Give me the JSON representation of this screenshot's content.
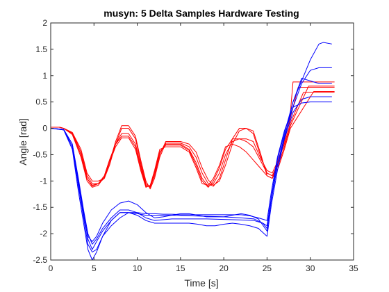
{
  "chart_data": {
    "type": "line",
    "title": "musyn: 5 Delta Samples Hardware Testing",
    "xlabel": "Time [s]",
    "ylabel": "Angle [rad]",
    "xlim": [
      0,
      35
    ],
    "ylim": [
      -2.5,
      2
    ],
    "xticks": [
      "0",
      "5",
      "10",
      "15",
      "20",
      "25",
      "30",
      "35"
    ],
    "yticks": [
      "-2.5",
      "-2",
      "-1.5",
      "-1",
      "-0.5",
      "0",
      "0.5",
      "1",
      "1.5",
      "2"
    ],
    "grid": false,
    "colors": {
      "red_group": "#ff0000",
      "blue_group": "#0000ff",
      "axes": "#262626"
    },
    "series": [
      {
        "color_group": "red",
        "x": [
          0,
          1,
          1.5,
          2.5,
          3.5,
          4.2,
          4.8,
          5.5,
          6.2,
          6.8,
          7.5,
          8.2,
          9,
          9.8,
          10.4,
          11,
          11.5,
          12,
          12.6,
          13.3,
          14,
          15,
          16,
          16.8,
          17.5,
          18.2,
          18.8,
          19.5,
          20.2,
          21,
          21.8,
          22.6,
          23.4,
          24.2,
          25,
          25.6,
          26.3,
          27,
          27.7,
          28,
          32.8
        ],
        "y": [
          0.02,
          0.02,
          0.0,
          -0.08,
          -0.4,
          -0.85,
          -1.0,
          -1.0,
          -0.95,
          -0.7,
          -0.3,
          0.0,
          0.0,
          -0.2,
          -0.65,
          -1.05,
          -1.12,
          -0.9,
          -0.5,
          -0.25,
          -0.25,
          -0.25,
          -0.3,
          -0.45,
          -0.75,
          -0.98,
          -1.08,
          -1.0,
          -0.7,
          -0.3,
          -0.05,
          0.0,
          -0.05,
          -0.45,
          -0.9,
          -0.95,
          -0.6,
          -0.2,
          0.3,
          0.88,
          0.88
        ]
      },
      {
        "color_group": "red",
        "x": [
          0,
          1,
          1.5,
          2.5,
          3.5,
          4.2,
          4.8,
          5.5,
          6.2,
          6.8,
          7.5,
          8.2,
          9,
          9.8,
          10.4,
          11,
          11.5,
          12,
          12.6,
          13.3,
          14,
          15,
          16,
          16.8,
          17.5,
          18.2,
          18.8,
          19.5,
          20.2,
          21,
          21.8,
          22.6,
          23.4,
          24.2,
          25,
          25.6,
          26.3,
          27,
          27.7,
          28.6,
          32.8
        ],
        "y": [
          0.02,
          0.02,
          0.0,
          -0.08,
          -0.45,
          -0.9,
          -1.05,
          -1.05,
          -0.95,
          -0.65,
          -0.25,
          0.05,
          0.05,
          -0.15,
          -0.6,
          -1.0,
          -1.15,
          -0.95,
          -0.55,
          -0.28,
          -0.28,
          -0.28,
          -0.35,
          -0.55,
          -0.85,
          -1.05,
          -1.1,
          -0.95,
          -0.6,
          -0.2,
          0.0,
          0.0,
          -0.1,
          -0.5,
          -0.85,
          -0.9,
          -0.65,
          -0.25,
          0.2,
          0.78,
          0.78
        ]
      },
      {
        "color_group": "red",
        "x": [
          0,
          1,
          1.5,
          2.5,
          3.5,
          4.2,
          4.8,
          5.5,
          6.2,
          6.8,
          7.5,
          8.2,
          9,
          9.8,
          10.4,
          11,
          11.5,
          12,
          12.6,
          13.3,
          14,
          15,
          16,
          16.8,
          17.5,
          18.2,
          18.8,
          19.5,
          20.2,
          21,
          21.8,
          22.6,
          23.4,
          24.2,
          25,
          25.6,
          26.3,
          27,
          27.7,
          29.2,
          32.8
        ],
        "y": [
          0.02,
          0.02,
          0.0,
          -0.1,
          -0.5,
          -0.95,
          -1.08,
          -1.05,
          -0.9,
          -0.6,
          -0.3,
          -0.1,
          -0.1,
          -0.3,
          -0.7,
          -1.08,
          -1.12,
          -0.85,
          -0.45,
          -0.3,
          -0.3,
          -0.3,
          -0.4,
          -0.65,
          -0.95,
          -1.1,
          -1.05,
          -0.85,
          -0.5,
          -0.25,
          -0.2,
          -0.2,
          -0.25,
          -0.55,
          -0.8,
          -0.85,
          -0.6,
          -0.3,
          0.1,
          0.68,
          0.68
        ]
      },
      {
        "color_group": "red",
        "x": [
          0,
          1,
          1.5,
          2.5,
          3.5,
          4.2,
          4.8,
          5.5,
          6.2,
          6.8,
          7.5,
          8.2,
          9,
          9.8,
          10.4,
          11,
          11.5,
          12,
          12.6,
          13.3,
          14,
          15,
          16,
          16.8,
          17.5,
          18.2,
          18.8,
          19.5,
          20.2,
          21,
          21.8,
          22.6,
          23.4,
          24.2,
          25,
          25.6,
          26.3,
          27,
          27.7,
          29.8,
          32.8
        ],
        "y": [
          0.02,
          0.02,
          0.0,
          -0.1,
          -0.5,
          -0.95,
          -1.1,
          -1.05,
          -0.9,
          -0.6,
          -0.3,
          -0.15,
          -0.15,
          -0.35,
          -0.75,
          -1.1,
          -1.1,
          -0.85,
          -0.45,
          -0.32,
          -0.32,
          -0.32,
          -0.42,
          -0.7,
          -1.0,
          -1.12,
          -1.0,
          -0.75,
          -0.4,
          -0.2,
          -0.2,
          -0.25,
          -0.35,
          -0.6,
          -0.85,
          -0.9,
          -0.7,
          -0.35,
          0.05,
          0.8,
          0.8
        ]
      },
      {
        "color_group": "red",
        "x": [
          0,
          1,
          1.5,
          2.5,
          3.5,
          4.2,
          4.8,
          5.5,
          6.2,
          6.8,
          7.5,
          8.2,
          9,
          9.8,
          10.4,
          11,
          11.5,
          12,
          12.6,
          13.3,
          14,
          15,
          16,
          16.8,
          17.5,
          18.2,
          18.8,
          19.5,
          20.2,
          21,
          21.8,
          22.6,
          23.4,
          24.2,
          25,
          25.6,
          26.3,
          27,
          27.7,
          30.4,
          32.8
        ],
        "y": [
          0.02,
          0.02,
          0.0,
          -0.12,
          -0.55,
          -1.0,
          -1.12,
          -1.08,
          -0.92,
          -0.65,
          -0.35,
          -0.18,
          -0.18,
          -0.4,
          -0.8,
          -1.12,
          -1.08,
          -0.8,
          -0.4,
          -0.35,
          -0.35,
          -0.35,
          -0.45,
          -0.75,
          -1.05,
          -1.08,
          -0.95,
          -0.7,
          -0.35,
          -0.3,
          -0.35,
          -0.45,
          -0.6,
          -0.75,
          -0.9,
          -0.95,
          -0.75,
          -0.4,
          0.0,
          0.7,
          0.7
        ]
      },
      {
        "color_group": "blue",
        "x": [
          0,
          1.5,
          2.5,
          3.2,
          3.8,
          4.3,
          4.8,
          5.3,
          6,
          7,
          8,
          9,
          10,
          11,
          12,
          14,
          16,
          18,
          20,
          22,
          23.5,
          24.5,
          25,
          25.5,
          26.2,
          27,
          28,
          29,
          30,
          31,
          31.5,
          32.5
        ],
        "y": [
          0,
          -0.02,
          -0.3,
          -1.0,
          -1.6,
          -2.1,
          -2.3,
          -2.15,
          -1.95,
          -1.75,
          -1.6,
          -1.6,
          -1.62,
          -1.65,
          -1.65,
          -1.65,
          -1.66,
          -1.67,
          -1.68,
          -1.7,
          -1.72,
          -1.8,
          -1.85,
          -1.3,
          -0.6,
          -0.1,
          0.5,
          0.9,
          1.3,
          1.6,
          1.63,
          1.6
        ]
      },
      {
        "color_group": "blue",
        "x": [
          0,
          1.5,
          2.5,
          3.2,
          3.8,
          4.3,
          4.8,
          5.3,
          6,
          7,
          8,
          9,
          10,
          11,
          12,
          14,
          16,
          18,
          20,
          22,
          23.5,
          24.5,
          25,
          25.5,
          26.2,
          27,
          28,
          29,
          30,
          31,
          32.5
        ],
        "y": [
          0,
          -0.02,
          -0.35,
          -1.1,
          -1.7,
          -2.2,
          -2.35,
          -2.3,
          -2.05,
          -1.85,
          -1.7,
          -1.6,
          -1.6,
          -1.7,
          -1.75,
          -1.72,
          -1.72,
          -1.72,
          -1.73,
          -1.74,
          -1.75,
          -1.8,
          -1.9,
          -1.35,
          -0.7,
          -0.15,
          0.4,
          0.85,
          1.1,
          1.15,
          1.15
        ]
      },
      {
        "color_group": "blue",
        "x": [
          0,
          1.5,
          2.5,
          3.2,
          3.8,
          4.3,
          4.8,
          5.3,
          6,
          7,
          8,
          9,
          10,
          11,
          12,
          13,
          14,
          15,
          16,
          17,
          18,
          19,
          20,
          21,
          22,
          23,
          24,
          25,
          25.5,
          26.2,
          27,
          28,
          29,
          30,
          31,
          32.5
        ],
        "y": [
          0,
          -0.03,
          -0.4,
          -1.2,
          -1.8,
          -2.3,
          -2.5,
          -2.35,
          -2.05,
          -1.75,
          -1.6,
          -1.6,
          -1.65,
          -1.75,
          -1.8,
          -1.8,
          -1.8,
          -1.8,
          -1.8,
          -1.82,
          -1.85,
          -1.85,
          -1.82,
          -1.8,
          -1.82,
          -1.85,
          -1.9,
          -2.05,
          -1.45,
          -0.8,
          -0.2,
          0.5,
          0.95,
          0.9,
          0.85,
          0.85
        ]
      },
      {
        "color_group": "blue",
        "x": [
          0,
          1.5,
          2.5,
          3.2,
          3.8,
          4.3,
          4.8,
          5.3,
          6,
          7,
          8,
          9,
          10,
          11,
          12,
          13,
          14,
          15,
          16,
          17,
          18,
          19,
          20,
          21,
          22,
          23,
          24,
          25,
          25.5,
          26.2,
          27,
          28,
          29,
          30,
          31,
          32.5
        ],
        "y": [
          0,
          -0.03,
          -0.35,
          -1.05,
          -1.65,
          -2.05,
          -2.15,
          -2.05,
          -1.8,
          -1.55,
          -1.42,
          -1.38,
          -1.45,
          -1.6,
          -1.7,
          -1.68,
          -1.65,
          -1.62,
          -1.62,
          -1.65,
          -1.68,
          -1.68,
          -1.68,
          -1.65,
          -1.62,
          -1.65,
          -1.72,
          -1.95,
          -1.35,
          -0.7,
          -0.2,
          0.3,
          0.55,
          0.6,
          0.6,
          0.6
        ]
      },
      {
        "color_group": "blue",
        "x": [
          0,
          1.5,
          2.5,
          3.2,
          3.8,
          4.3,
          4.8,
          5.3,
          6,
          7,
          8,
          9,
          10,
          11,
          12,
          13,
          14,
          15,
          16,
          17,
          18,
          19,
          20,
          21,
          22,
          23,
          24,
          25,
          25.5,
          26.2,
          27,
          28,
          29,
          30,
          31,
          32.5
        ],
        "y": [
          0,
          -0.02,
          -0.3,
          -0.95,
          -1.55,
          -2.0,
          -2.2,
          -2.1,
          -1.9,
          -1.7,
          -1.55,
          -1.55,
          -1.6,
          -1.62,
          -1.62,
          -1.63,
          -1.63,
          -1.64,
          -1.64,
          -1.64,
          -1.64,
          -1.64,
          -1.64,
          -1.64,
          -1.64,
          -1.66,
          -1.7,
          -1.75,
          -1.2,
          -0.55,
          -0.05,
          0.4,
          0.48,
          0.5,
          0.5,
          0.5
        ]
      }
    ]
  }
}
